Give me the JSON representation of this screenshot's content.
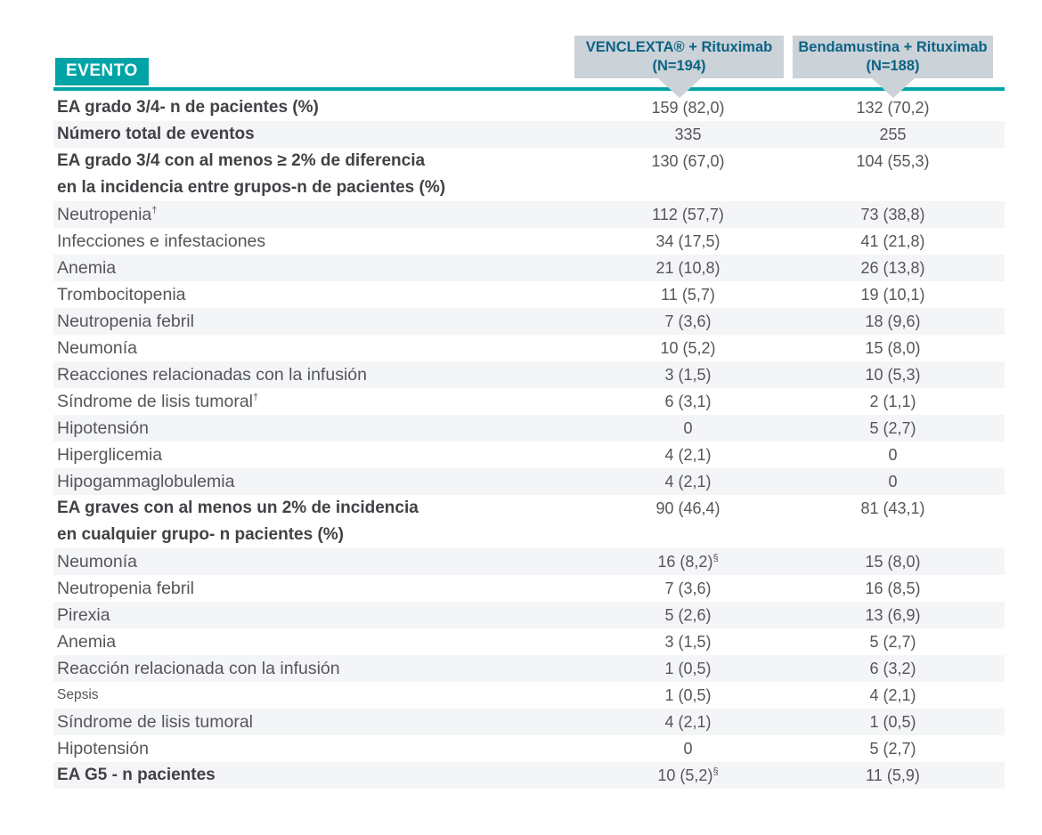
{
  "colors": {
    "teal": "#00A4A7",
    "header_box": "#CBD2D8",
    "header_text": "#0D6384",
    "stripe": "#F4F5F7",
    "text": "#55565A",
    "bold_text": "#414246"
  },
  "table": {
    "event_header": "EVENTO",
    "columns": [
      {
        "name": "VENCLEXTA® + Rituximab",
        "n": "(N=194)"
      },
      {
        "name": "Bendamustina + Rituximab",
        "n": "(N=188)"
      }
    ],
    "rows": [
      {
        "label": "EA grado 3/4- n de pacientes (%)",
        "bold": true,
        "col1": "159 (82,0)",
        "col2": "132 (70,2)"
      },
      {
        "label": "Número total de eventos",
        "bold": true,
        "col1": "335",
        "col2": "255"
      },
      {
        "label": "EA grado 3/4 con al menos ≥ 2% de diferencia",
        "label2": "en la incidencia entre grupos-n de pacientes (%)",
        "bold": true,
        "col1": "130 (67,0)",
        "col2": "104 (55,3)"
      },
      {
        "label": "Neutropenia",
        "label_sup": "†",
        "col1": "112 (57,7)",
        "col2": "73 (38,8)"
      },
      {
        "label": "Infecciones e infestaciones",
        "col1": "34 (17,5)",
        "col2": "41 (21,8)"
      },
      {
        "label": "Anemia",
        "col1": "21 (10,8)",
        "col2": "26 (13,8)"
      },
      {
        "label": "Trombocitopenia",
        "col1": "11 (5,7)",
        "col2": "19 (10,1)"
      },
      {
        "label": "Neutropenia febril",
        "col1": "7 (3,6)",
        "col2": "18 (9,6)"
      },
      {
        "label": "Neumonía",
        "col1": "10 (5,2)",
        "col2": "15 (8,0)"
      },
      {
        "label": "Reacciones relacionadas con la infusión",
        "col1": "3 (1,5)",
        "col2": "10 (5,3)"
      },
      {
        "label": "Síndrome de lisis tumoral",
        "label_sup": "†",
        "col1": "6 (3,1)",
        "col2": "2 (1,1)"
      },
      {
        "label": "Hipotensión",
        "col1": "0",
        "col2": "5 (2,7)"
      },
      {
        "label": "Hiperglicemia",
        "col1": "4 (2,1)",
        "col2": "0"
      },
      {
        "label": "Hipogammaglobulemia",
        "col1": "4 (2,1)",
        "col2": "0"
      },
      {
        "label": "EA graves con al menos un 2% de incidencia",
        "label2": "en cualquier grupo- n pacientes (%)",
        "bold": true,
        "col1": "90 (46,4)",
        "col2": "81 (43,1)"
      },
      {
        "label": "Neumonía",
        "col1": "16 (8,2)",
        "col1_sup": "§",
        "col2": "15 (8,0)"
      },
      {
        "label": "Neutropenia febril",
        "col1": "7 (3,6)",
        "col2": "16 (8,5)"
      },
      {
        "label": "Pirexia",
        "col1": "5 (2,6)",
        "col2": "13 (6,9)"
      },
      {
        "label": "Anemia",
        "col1": "3 (1,5)",
        "col2": "5 (2,7)"
      },
      {
        "label": "Reacción relacionada con la infusión",
        "col1": "1 (0,5)",
        "col2": "6 (3,2)"
      },
      {
        "label": "Sepsis",
        "small": true,
        "col1": "1 (0,5)",
        "col2": "4 (2,1)"
      },
      {
        "label": "Síndrome de lisis tumoral",
        "col1": "4 (2,1)",
        "col2": "1 (0,5)"
      },
      {
        "label": "Hipotensión",
        "col1": "0",
        "col2": "5 (2,7)"
      },
      {
        "label": "EA G5 - n pacientes",
        "bold": true,
        "col1": "10 (5,2)",
        "col1_sup": "§",
        "col2": "11 (5,9)"
      }
    ]
  }
}
